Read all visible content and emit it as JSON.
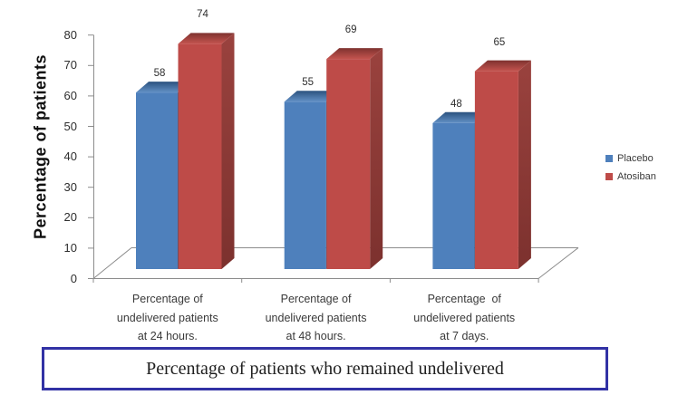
{
  "title_box": {
    "text": "Percentage of patients who remained undelivered",
    "border_color": "#3232a5"
  },
  "chart_data": {
    "type": "bar",
    "projection": "3d",
    "title": "",
    "y_axis_title": "Percentage of patients",
    "ylim": [
      0,
      80
    ],
    "ytick_step": 10,
    "grid": false,
    "data_labels": "above-bar",
    "legend_position": "right",
    "categories": [
      {
        "lines": [
          "Percentage of",
          "undelivered patients",
          "at 24 hours."
        ]
      },
      {
        "lines": [
          "Percentage of",
          "undelivered patients",
          "at 48 hours."
        ]
      },
      {
        "lines": [
          "Percentage  of",
          "undelivered patients",
          "at 7 days."
        ]
      }
    ],
    "series": [
      {
        "name": "Placebo",
        "values": [
          58,
          55,
          48
        ],
        "color": "#4e80bc",
        "color_top_dark": "#2b527f",
        "color_top_light": "#6290c5",
        "color_side_top": "#35608f",
        "color_side_bottom": "#2a4c73"
      },
      {
        "name": "Atosiban",
        "values": [
          74,
          69,
          65
        ],
        "color": "#be4b48",
        "color_top_dark": "#7e322f",
        "color_top_light": "#c4544f",
        "color_side_top": "#9a423e",
        "color_side_bottom": "#7c312e"
      }
    ],
    "axis_color": "#8c8c8c",
    "tick_label_color": "#2e2e2e",
    "category_label_color": "#3a3a3a",
    "data_label_color": "#2e2e2e",
    "legend_text_color": "#3a3a3a"
  }
}
